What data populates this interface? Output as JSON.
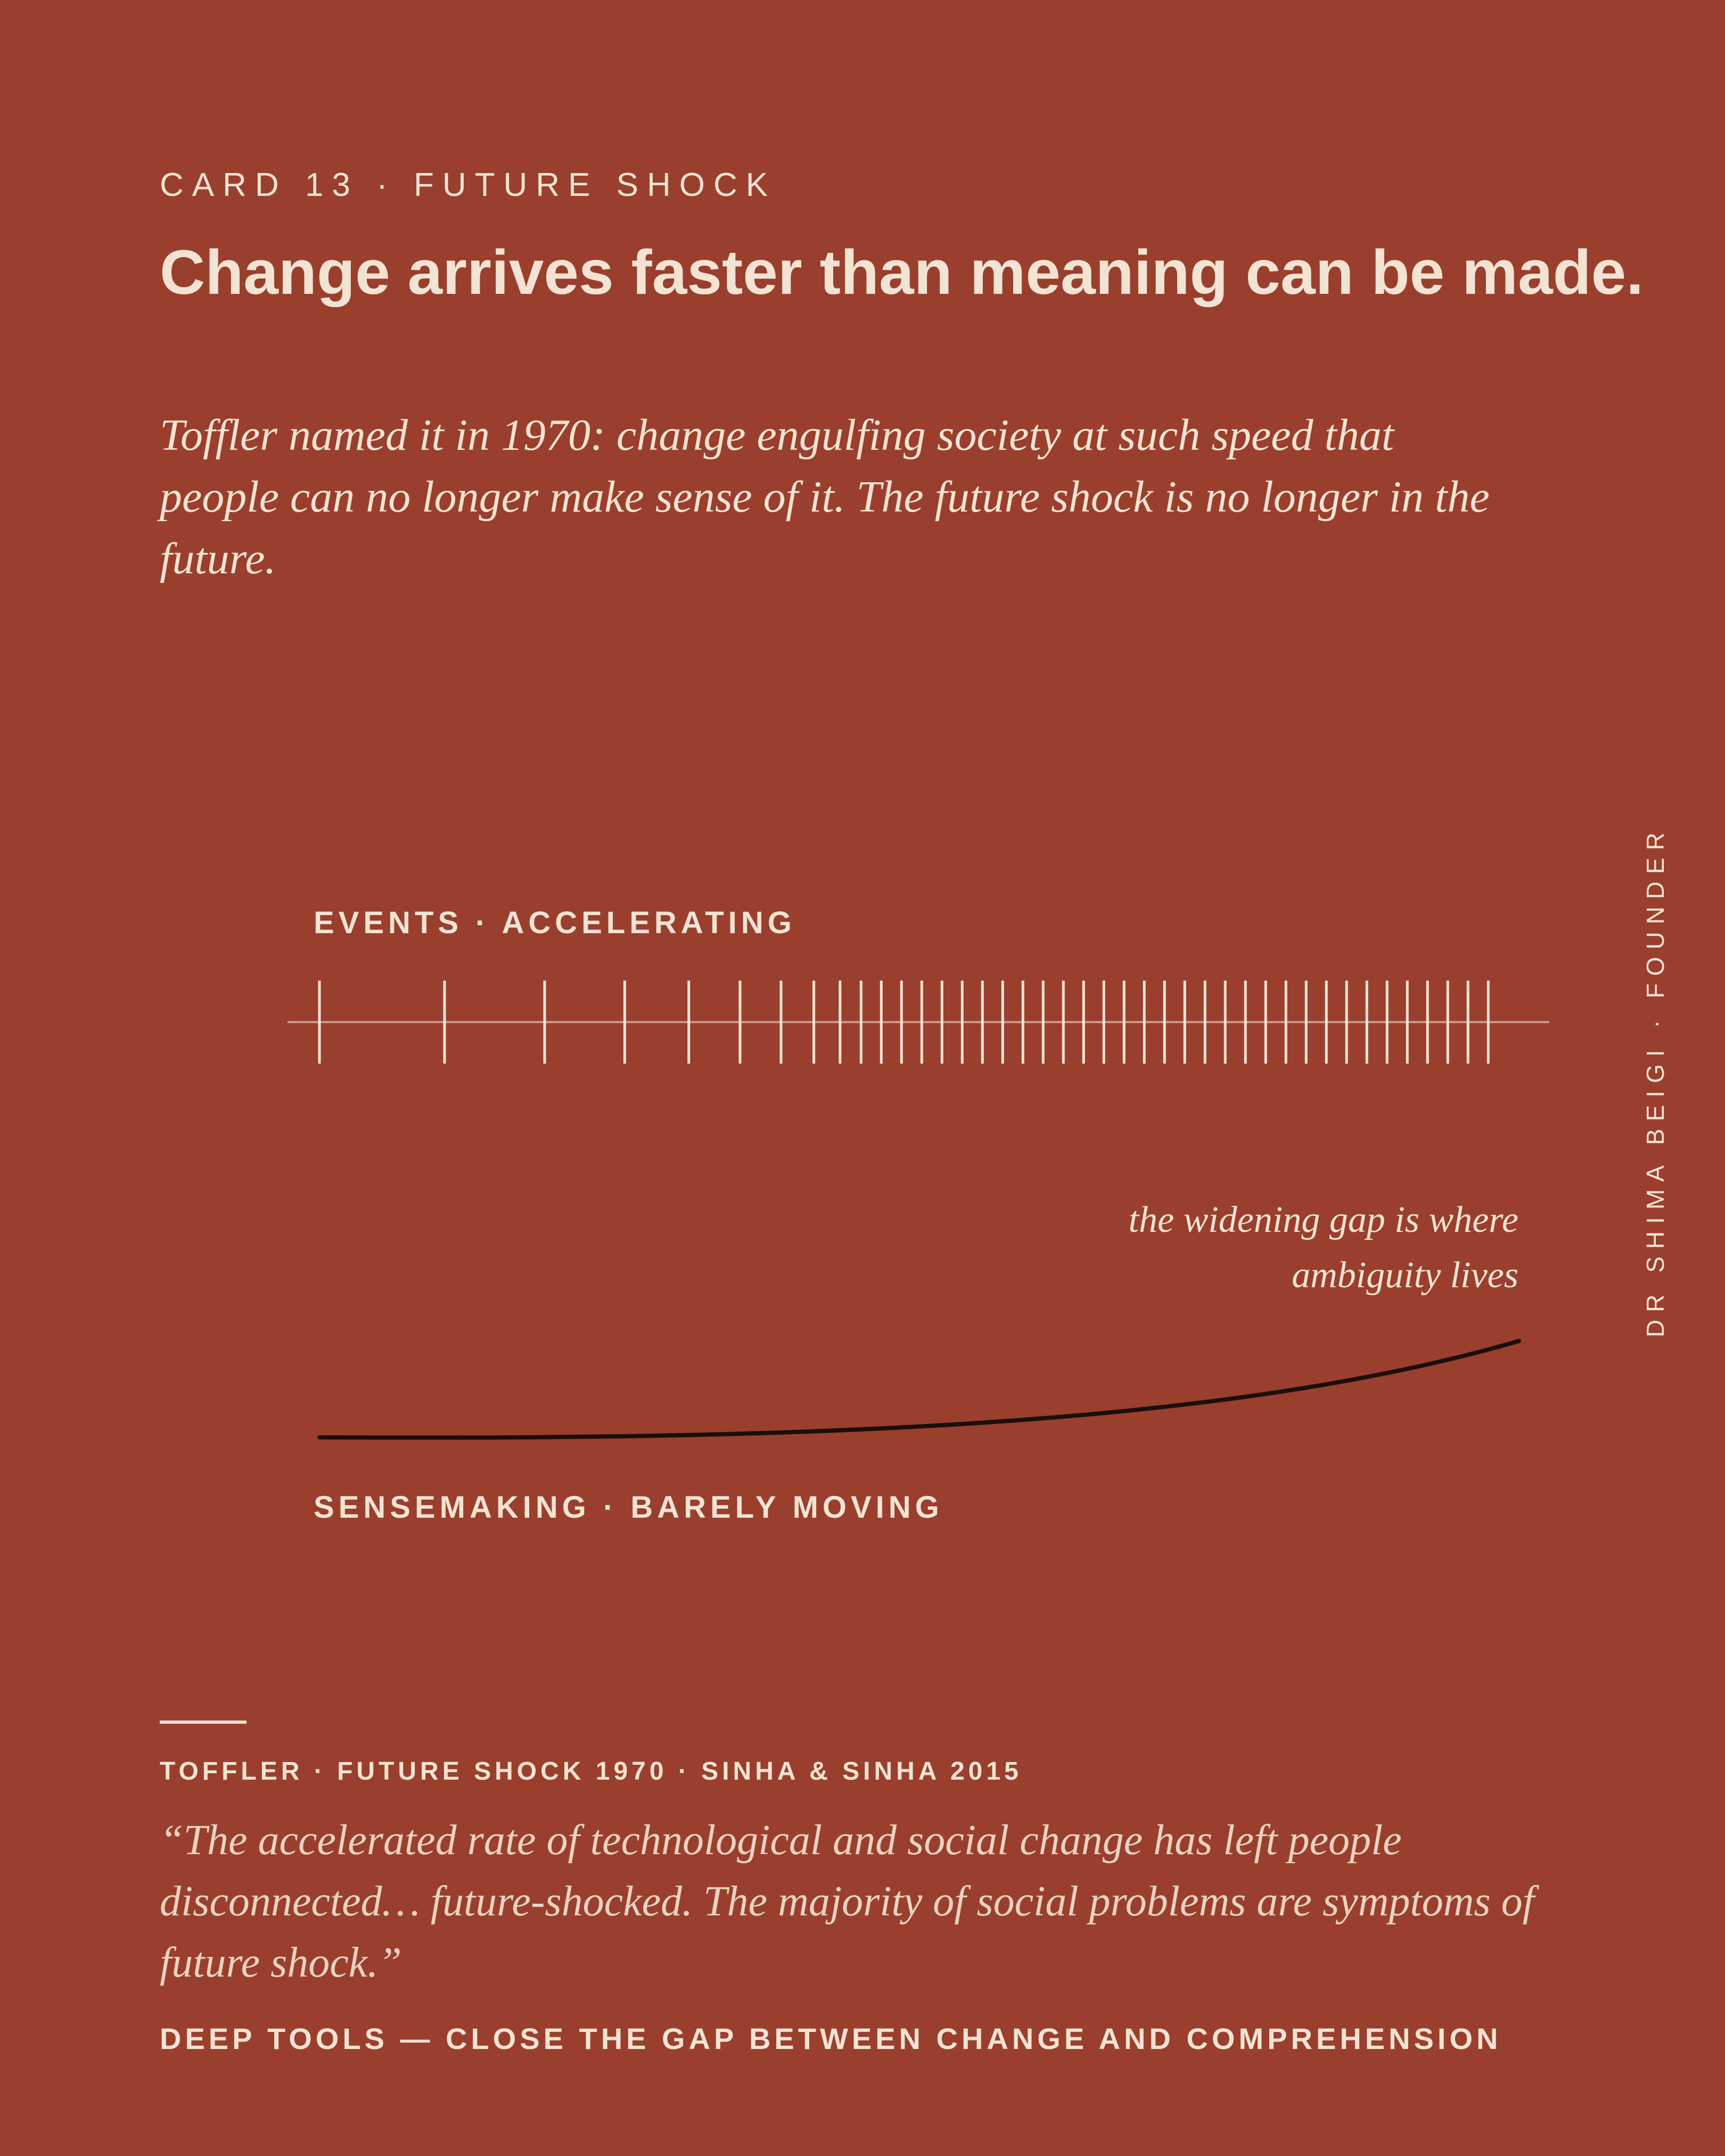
{
  "header": {
    "eyebrow": "CARD 13 · FUTURE SHOCK",
    "title": "Change arrives faster than meaning can be made.",
    "subtitle": "Toffler named it in 1970: change engulfing society at such speed that people can no longer make sense of it. The future shock is no longer in the future."
  },
  "diagram": {
    "top_label": "EVENTS · ACCELERATING",
    "annotation": [
      "the widening gap is where",
      "ambiguity lives"
    ],
    "bottom_label": "SENSEMAKING · BARELY MOVING"
  },
  "side_text": "DR SHIMA BEIGI · FOUNDER",
  "footer": {
    "sources": "TOFFLER · FUTURE SHOCK 1970 · SINHA & SINHA 2015",
    "quote": "“The accelerated rate of technological and social change has left people disconnected… future-shocked. The majority of social problems are symptoms of future shock.”",
    "tagline": "DEEP TOOLS — CLOSE THE GAP BETWEEN CHANGE AND COMPREHENSION"
  }
}
